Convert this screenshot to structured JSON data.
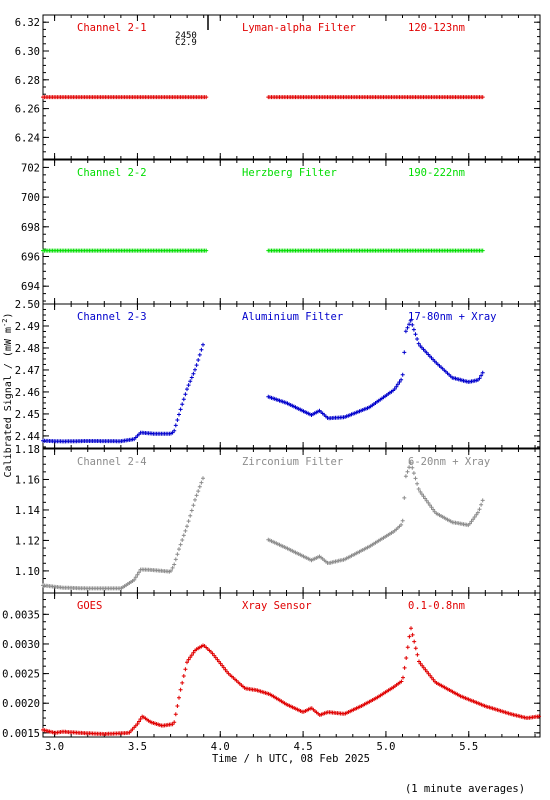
{
  "figure": {
    "ylabel": "Calibrated Signal / (mW m",
    "ylabel_sup": "-2",
    "ylabel_close": ")",
    "xlabel": "Time / h UTC, 08 Feb 2025",
    "note": "(1 minute averages)",
    "marker_text_1": "2450",
    "marker_text_2": "C2.9",
    "x_ticks": [
      "3.0",
      "3.5",
      "4.0",
      "4.5",
      "5.0",
      "5.5"
    ]
  },
  "chart_data": [
    {
      "type": "scatter",
      "label_left": "Channel 2-1",
      "label_mid": "Lyman-alpha Filter",
      "label_right": "120-123nm",
      "color": "#e00000",
      "xlim": [
        2.93,
        5.93
      ],
      "ylim": [
        6.225,
        6.325
      ],
      "yticks": [
        "6.32",
        "6.30",
        "6.28",
        "6.26",
        "6.24"
      ],
      "ytick_values": [
        6.32,
        6.3,
        6.28,
        6.26,
        6.24
      ],
      "series": [
        {
          "x": [
            2.93,
            3.92
          ],
          "y": [
            6.268,
            6.268
          ]
        },
        {
          "x": [
            4.29,
            5.59
          ],
          "y": [
            6.268,
            6.268
          ]
        }
      ]
    },
    {
      "type": "scatter",
      "label_left": "Channel 2-2",
      "label_mid": "Herzberg Filter",
      "label_right": "190-222nm",
      "color": "#00dd00",
      "xlim": [
        2.93,
        5.93
      ],
      "ylim": [
        692.8,
        702.5
      ],
      "yticks": [
        "702",
        "700",
        "698",
        "696",
        "694"
      ],
      "ytick_values": [
        702,
        700,
        698,
        696,
        694
      ],
      "series": [
        {
          "x": [
            2.93,
            3.92
          ],
          "y": [
            696.4,
            696.4
          ]
        },
        {
          "x": [
            4.29,
            5.59
          ],
          "y": [
            696.4,
            696.4
          ]
        }
      ]
    },
    {
      "type": "scatter",
      "label_left": "Channel 2-3",
      "label_mid": "Aluminium Filter",
      "label_right": "17-80nm + Xray",
      "color": "#0000cc",
      "xlim": [
        2.93,
        5.93
      ],
      "ylim": [
        2.4345,
        2.5
      ],
      "yticks": [
        "2.50",
        "2.49",
        "2.48",
        "2.47",
        "2.46",
        "2.45",
        "2.44"
      ],
      "ytick_values": [
        2.5,
        2.49,
        2.48,
        2.47,
        2.46,
        2.45,
        2.44
      ],
      "series": [
        {
          "x": [
            2.93,
            3.05,
            3.2,
            3.4,
            3.48,
            3.52,
            3.6,
            3.7,
            3.72,
            3.75,
            3.8,
            3.85,
            3.9
          ],
          "y": [
            2.4378,
            2.4375,
            2.4377,
            2.4376,
            2.4385,
            2.4415,
            2.441,
            2.441,
            2.4418,
            2.4495,
            2.4615,
            2.4705,
            2.4825
          ]
        },
        {
          "x": [
            4.29,
            4.4,
            4.55,
            4.6,
            4.65,
            4.75,
            4.9,
            5.05,
            5.1,
            5.12,
            5.15,
            5.2,
            5.3,
            5.4,
            5.5,
            5.56,
            5.59
          ],
          "y": [
            2.4578,
            2.455,
            2.4495,
            2.4515,
            2.448,
            2.4485,
            2.453,
            2.461,
            2.4665,
            2.4875,
            2.4925,
            2.4815,
            2.4735,
            2.4665,
            2.4645,
            2.4655,
            2.4695
          ]
        }
      ]
    },
    {
      "type": "scatter",
      "label_left": "Channel 2-4",
      "label_mid": "Zirconium Filter",
      "label_right": "6-20nm + Xray",
      "color": "#8c8c8c",
      "xlim": [
        2.93,
        5.93
      ],
      "ylim": [
        1.0855,
        1.18
      ],
      "yticks": [
        "1.18",
        "1.16",
        "1.14",
        "1.12",
        "1.10"
      ],
      "ytick_values": [
        1.18,
        1.16,
        1.14,
        1.12,
        1.1
      ],
      "series": [
        {
          "x": [
            2.93,
            3.05,
            3.2,
            3.4,
            3.48,
            3.52,
            3.6,
            3.7,
            3.72,
            3.75,
            3.8,
            3.85,
            3.9
          ],
          "y": [
            1.0905,
            1.089,
            1.0885,
            1.0885,
            1.094,
            1.101,
            1.1005,
            1.0995,
            1.1035,
            1.114,
            1.1295,
            1.1475,
            1.162
          ]
        },
        {
          "x": [
            4.29,
            4.4,
            4.55,
            4.6,
            4.65,
            4.75,
            4.9,
            5.05,
            5.1,
            5.12,
            5.15,
            5.2,
            5.3,
            5.4,
            5.5,
            5.56,
            5.59
          ],
          "y": [
            1.1205,
            1.115,
            1.107,
            1.1095,
            1.105,
            1.1075,
            1.116,
            1.126,
            1.131,
            1.162,
            1.171,
            1.153,
            1.138,
            1.132,
            1.13,
            1.139,
            1.148
          ]
        }
      ]
    },
    {
      "type": "scatter",
      "label_left": "GOES",
      "label_mid": "Xray Sensor",
      "label_right": "0.1-0.8nm",
      "color": "#e00000",
      "xlim": [
        2.93,
        5.93
      ],
      "ylim": [
        0.00143,
        0.00386
      ],
      "yticks": [
        "0.0035",
        "0.0030",
        "0.0025",
        "0.0020",
        "0.0015"
      ],
      "ytick_values": [
        0.0035,
        0.003,
        0.0025,
        0.002,
        0.0015
      ],
      "series": [
        {
          "x": [
            2.93,
            3.0,
            3.05,
            3.15,
            3.3,
            3.45,
            3.5,
            3.53,
            3.58,
            3.65,
            3.72,
            3.76,
            3.8,
            3.85,
            3.9,
            3.95,
            4.05,
            4.15,
            4.22,
            4.3,
            4.4,
            4.5,
            4.55,
            4.6,
            4.65,
            4.75,
            4.85,
            4.95,
            5.05,
            5.1,
            5.12,
            5.15,
            5.2,
            5.3,
            5.45,
            5.6,
            5.75,
            5.85,
            5.93
          ],
          "y": [
            0.00155,
            0.0015,
            0.00152,
            0.0015,
            0.00148,
            0.0015,
            0.00165,
            0.00178,
            0.00168,
            0.00162,
            0.00165,
            0.00222,
            0.0027,
            0.0029,
            0.00298,
            0.00285,
            0.0025,
            0.00225,
            0.00222,
            0.00215,
            0.00198,
            0.00185,
            0.00192,
            0.0018,
            0.00185,
            0.00182,
            0.00195,
            0.0021,
            0.00228,
            0.00238,
            0.00272,
            0.00328,
            0.0027,
            0.00235,
            0.00212,
            0.00195,
            0.00182,
            0.00175,
            0.00178
          ]
        }
      ]
    }
  ]
}
